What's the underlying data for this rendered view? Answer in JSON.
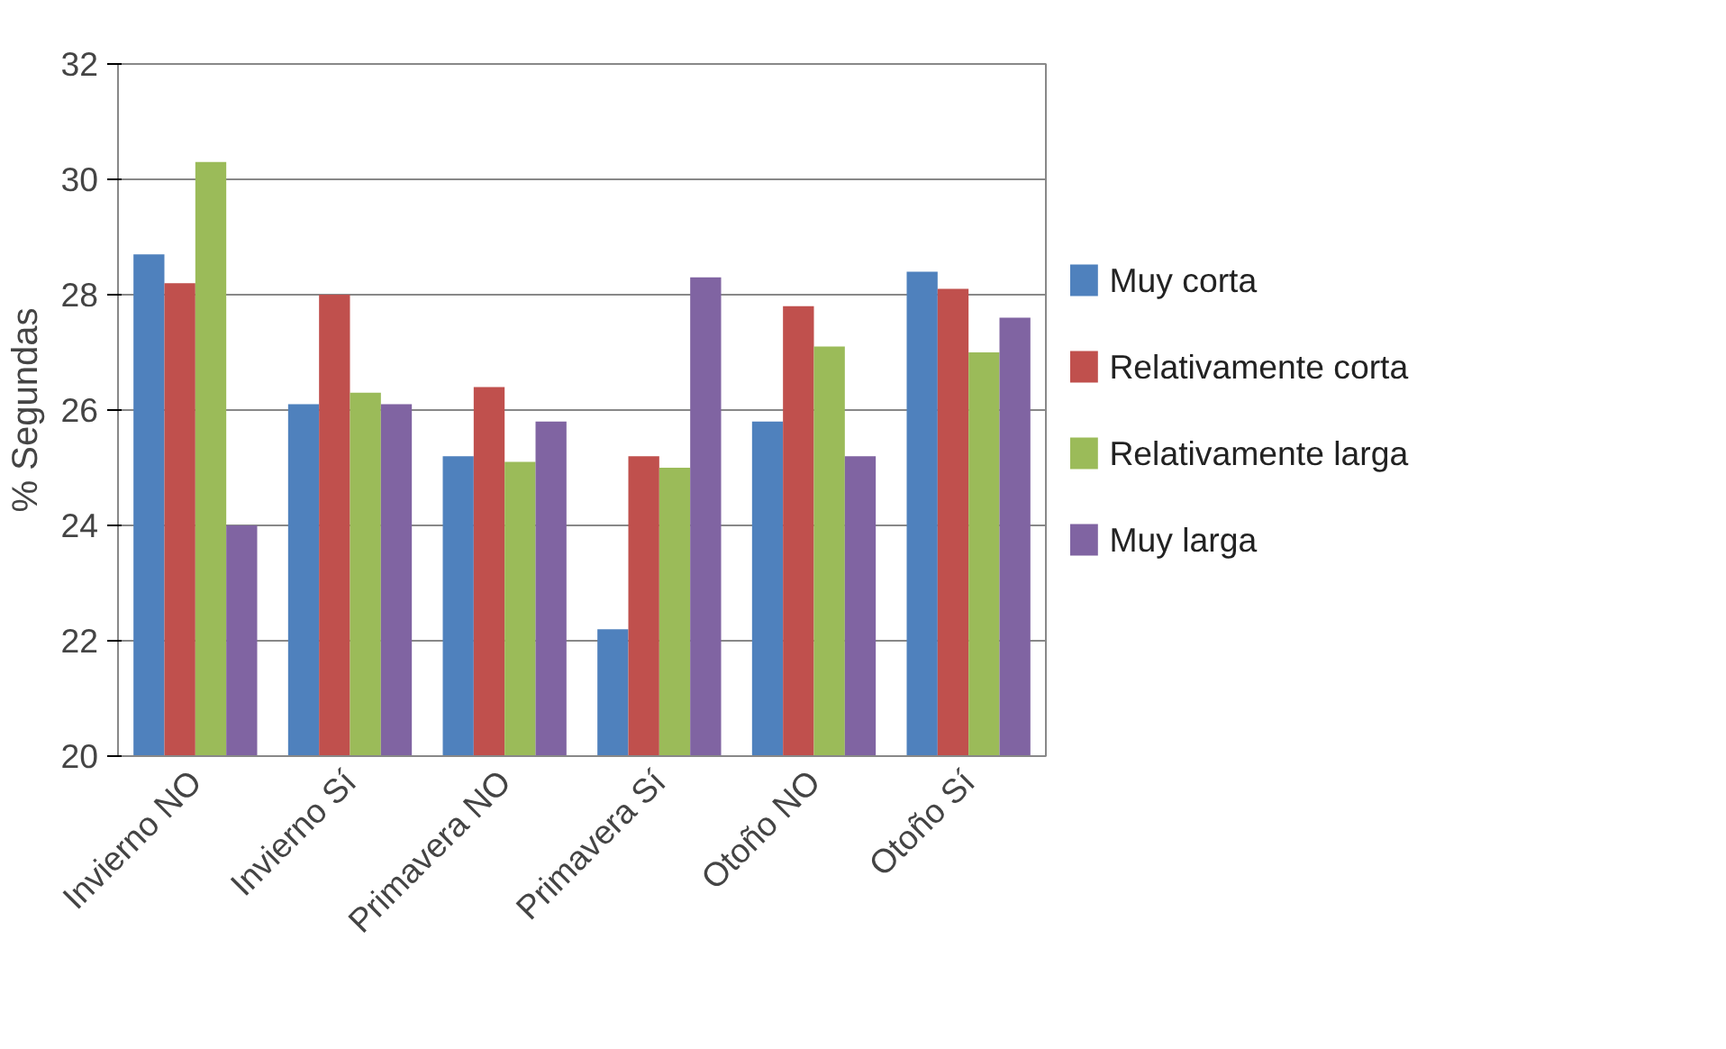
{
  "chart_data": {
    "type": "bar",
    "ylabel": "% Segundas",
    "categories": [
      "Invierno NO",
      "Invierno Sí",
      "Primavera NO",
      "Primavera Sí",
      "Otoño NO",
      "Otoño Sí"
    ],
    "series": [
      {
        "name": "Muy corta",
        "color": "#4f81bd",
        "values": [
          28.7,
          26.1,
          25.2,
          22.2,
          25.8,
          28.4
        ]
      },
      {
        "name": "Relativamente corta",
        "color": "#c0504d",
        "values": [
          28.2,
          28.0,
          26.4,
          25.2,
          27.8,
          28.1
        ]
      },
      {
        "name": "Relativamente larga",
        "color": "#9bbb59",
        "values": [
          30.3,
          26.3,
          25.1,
          25.0,
          27.1,
          27.0
        ]
      },
      {
        "name": "Muy larga",
        "color": "#8064a2",
        "values": [
          24.0,
          26.1,
          25.8,
          28.3,
          25.2,
          27.6
        ]
      }
    ],
    "ylim": [
      20,
      32
    ],
    "yticks": [
      20,
      22,
      24,
      26,
      28,
      30,
      32
    ],
    "grid": "y",
    "legend": "right"
  }
}
